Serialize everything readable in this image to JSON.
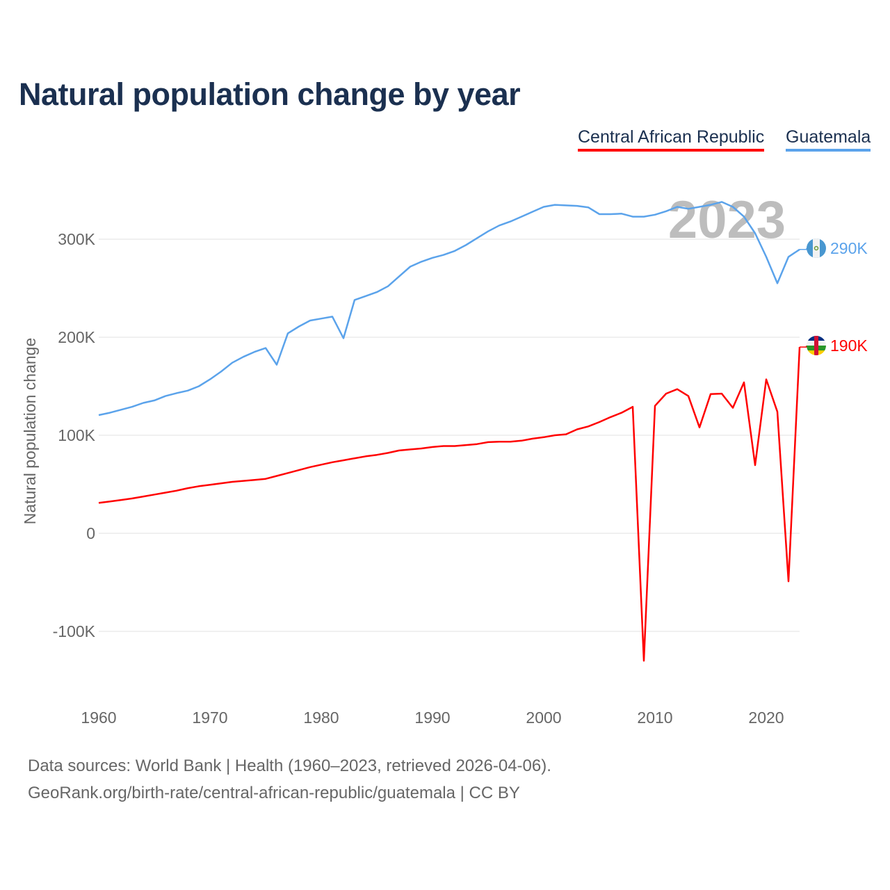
{
  "chart_data": {
    "type": "line",
    "title": "Natural population change by year",
    "xlabel": "",
    "ylabel": "Natural population change",
    "xlim": [
      1960,
      2023
    ],
    "ylim": [
      -150000,
      350000
    ],
    "grid": true,
    "legend_position": "top-right",
    "year_watermark": "2023",
    "x_ticks": [
      1960,
      1970,
      1980,
      1990,
      2000,
      2010,
      2020
    ],
    "x_tick_labels": [
      "1960",
      "1970",
      "1980",
      "1990",
      "2000",
      "2010",
      "2020"
    ],
    "y_ticks": [
      -100000,
      0,
      100000,
      200000,
      300000
    ],
    "y_tick_labels": [
      "-100K",
      "0",
      "100K",
      "200K",
      "300K"
    ],
    "x": [
      1960,
      1961,
      1962,
      1963,
      1964,
      1965,
      1966,
      1967,
      1968,
      1969,
      1970,
      1971,
      1972,
      1973,
      1974,
      1975,
      1976,
      1977,
      1978,
      1979,
      1980,
      1981,
      1982,
      1983,
      1984,
      1985,
      1986,
      1987,
      1988,
      1989,
      1990,
      1991,
      1992,
      1993,
      1994,
      1995,
      1996,
      1997,
      1998,
      1999,
      2000,
      2001,
      2002,
      2003,
      2004,
      2005,
      2006,
      2007,
      2008,
      2009,
      2010,
      2011,
      2012,
      2013,
      2014,
      2015,
      2016,
      2017,
      2018,
      2019,
      2020,
      2021,
      2022,
      2023
    ],
    "series": [
      {
        "name": "Central African Republic",
        "color": "#ff0000",
        "end_label": "190K",
        "values": [
          31000,
          32500,
          34000,
          35500,
          37500,
          39500,
          41500,
          43500,
          46000,
          48000,
          49500,
          51000,
          52500,
          53500,
          54500,
          55500,
          58500,
          61500,
          64500,
          67500,
          70000,
          72500,
          74500,
          76500,
          78500,
          80000,
          82000,
          84500,
          85500,
          86500,
          88000,
          89000,
          89000,
          90000,
          91000,
          93000,
          93500,
          93500,
          94500,
          96500,
          98000,
          100000,
          101000,
          106000,
          109000,
          113500,
          118500,
          123000,
          129000,
          -130000,
          130000,
          142500,
          147000,
          140000,
          108000,
          142000,
          142500,
          128000,
          154000,
          69500,
          157000,
          124000,
          -49000,
          190000
        ]
      },
      {
        "name": "Guatemala",
        "color": "#5ba3eb",
        "end_label": "290K",
        "values": [
          120600,
          123000,
          126000,
          129000,
          133000,
          135500,
          140000,
          143000,
          145500,
          150000,
          157000,
          165000,
          174000,
          180000,
          185000,
          189000,
          172000,
          204000,
          211000,
          217000,
          219000,
          221000,
          199000,
          238000,
          242000,
          246000,
          252000,
          262000,
          272000,
          277000,
          281000,
          284000,
          288000,
          294000,
          301000,
          308000,
          314000,
          318000,
          323000,
          328000,
          333000,
          335000,
          334500,
          334000,
          332500,
          325500,
          325500,
          326000,
          323000,
          323000,
          325000,
          328500,
          333000,
          331000,
          333000,
          335000,
          338000,
          333000,
          323000,
          306000,
          282000,
          255000,
          282000,
          289500
        ]
      }
    ]
  },
  "footer": {
    "line1": "Data sources: World Bank | Health (1960–2023, retrieved 2026-04-06).",
    "line2": "GeoRank.org/birth-rate/central-african-republic/guatemala | CC BY"
  }
}
